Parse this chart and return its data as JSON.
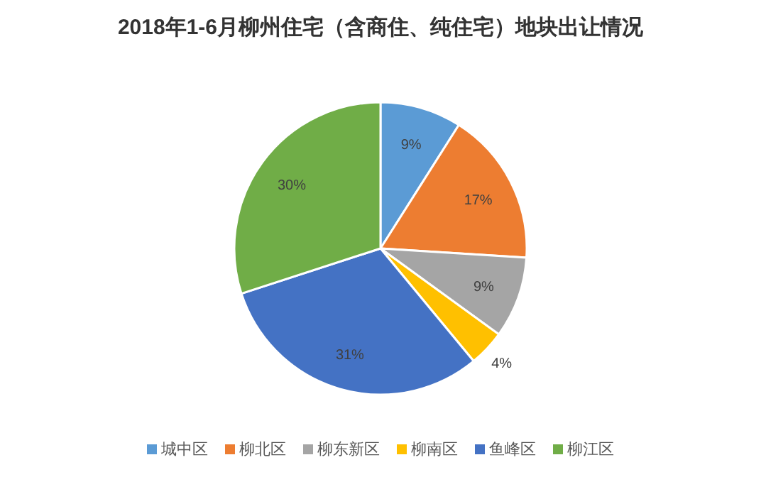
{
  "chart_data": {
    "type": "pie",
    "title": "2018年1-6月柳州住宅（含商住、纯住宅）地块出让情况",
    "categories": [
      "城中区",
      "柳北区",
      "柳东新区",
      "柳南区",
      "鱼峰区",
      "柳江区"
    ],
    "values": [
      9,
      17,
      9,
      4,
      31,
      30
    ],
    "colors": [
      "#5b9bd5",
      "#ed7d31",
      "#a5a5a5",
      "#ffc000",
      "#4472c4",
      "#70ad47"
    ],
    "value_labels": [
      "9%",
      "17%",
      "9%",
      "4%",
      "31%",
      "30%"
    ],
    "legend": "bottom"
  }
}
